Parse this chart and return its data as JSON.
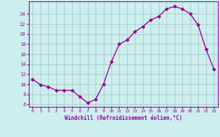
{
  "x": [
    0,
    1,
    2,
    3,
    4,
    5,
    6,
    7,
    8,
    9,
    10,
    11,
    12,
    13,
    14,
    15,
    16,
    17,
    18,
    19,
    20,
    21,
    22,
    23
  ],
  "y": [
    11.0,
    9.9,
    9.5,
    8.8,
    8.8,
    8.8,
    7.5,
    6.3,
    7.0,
    10.0,
    14.5,
    18.0,
    18.8,
    20.5,
    21.5,
    22.8,
    23.5,
    25.0,
    25.5,
    25.0,
    24.0,
    21.8,
    17.0,
    13.0
  ],
  "line_color": "#990099",
  "marker": "D",
  "markersize": 2.5,
  "linewidth": 1.0,
  "xlabel": "Windchill (Refroidissement éolien,°C)",
  "xlabel_color": "#990099",
  "bg_color": "#cceeee",
  "grid_color": "#aacccc",
  "tick_color": "#990099",
  "spine_color": "#990099",
  "ylim": [
    5.5,
    26.5
  ],
  "xlim": [
    -0.5,
    23.5
  ],
  "yticks": [
    6,
    8,
    10,
    12,
    14,
    16,
    18,
    20,
    22,
    24
  ],
  "xticks": [
    0,
    1,
    2,
    3,
    4,
    5,
    6,
    7,
    8,
    9,
    10,
    11,
    12,
    13,
    14,
    15,
    16,
    17,
    18,
    19,
    20,
    21,
    22,
    23
  ]
}
